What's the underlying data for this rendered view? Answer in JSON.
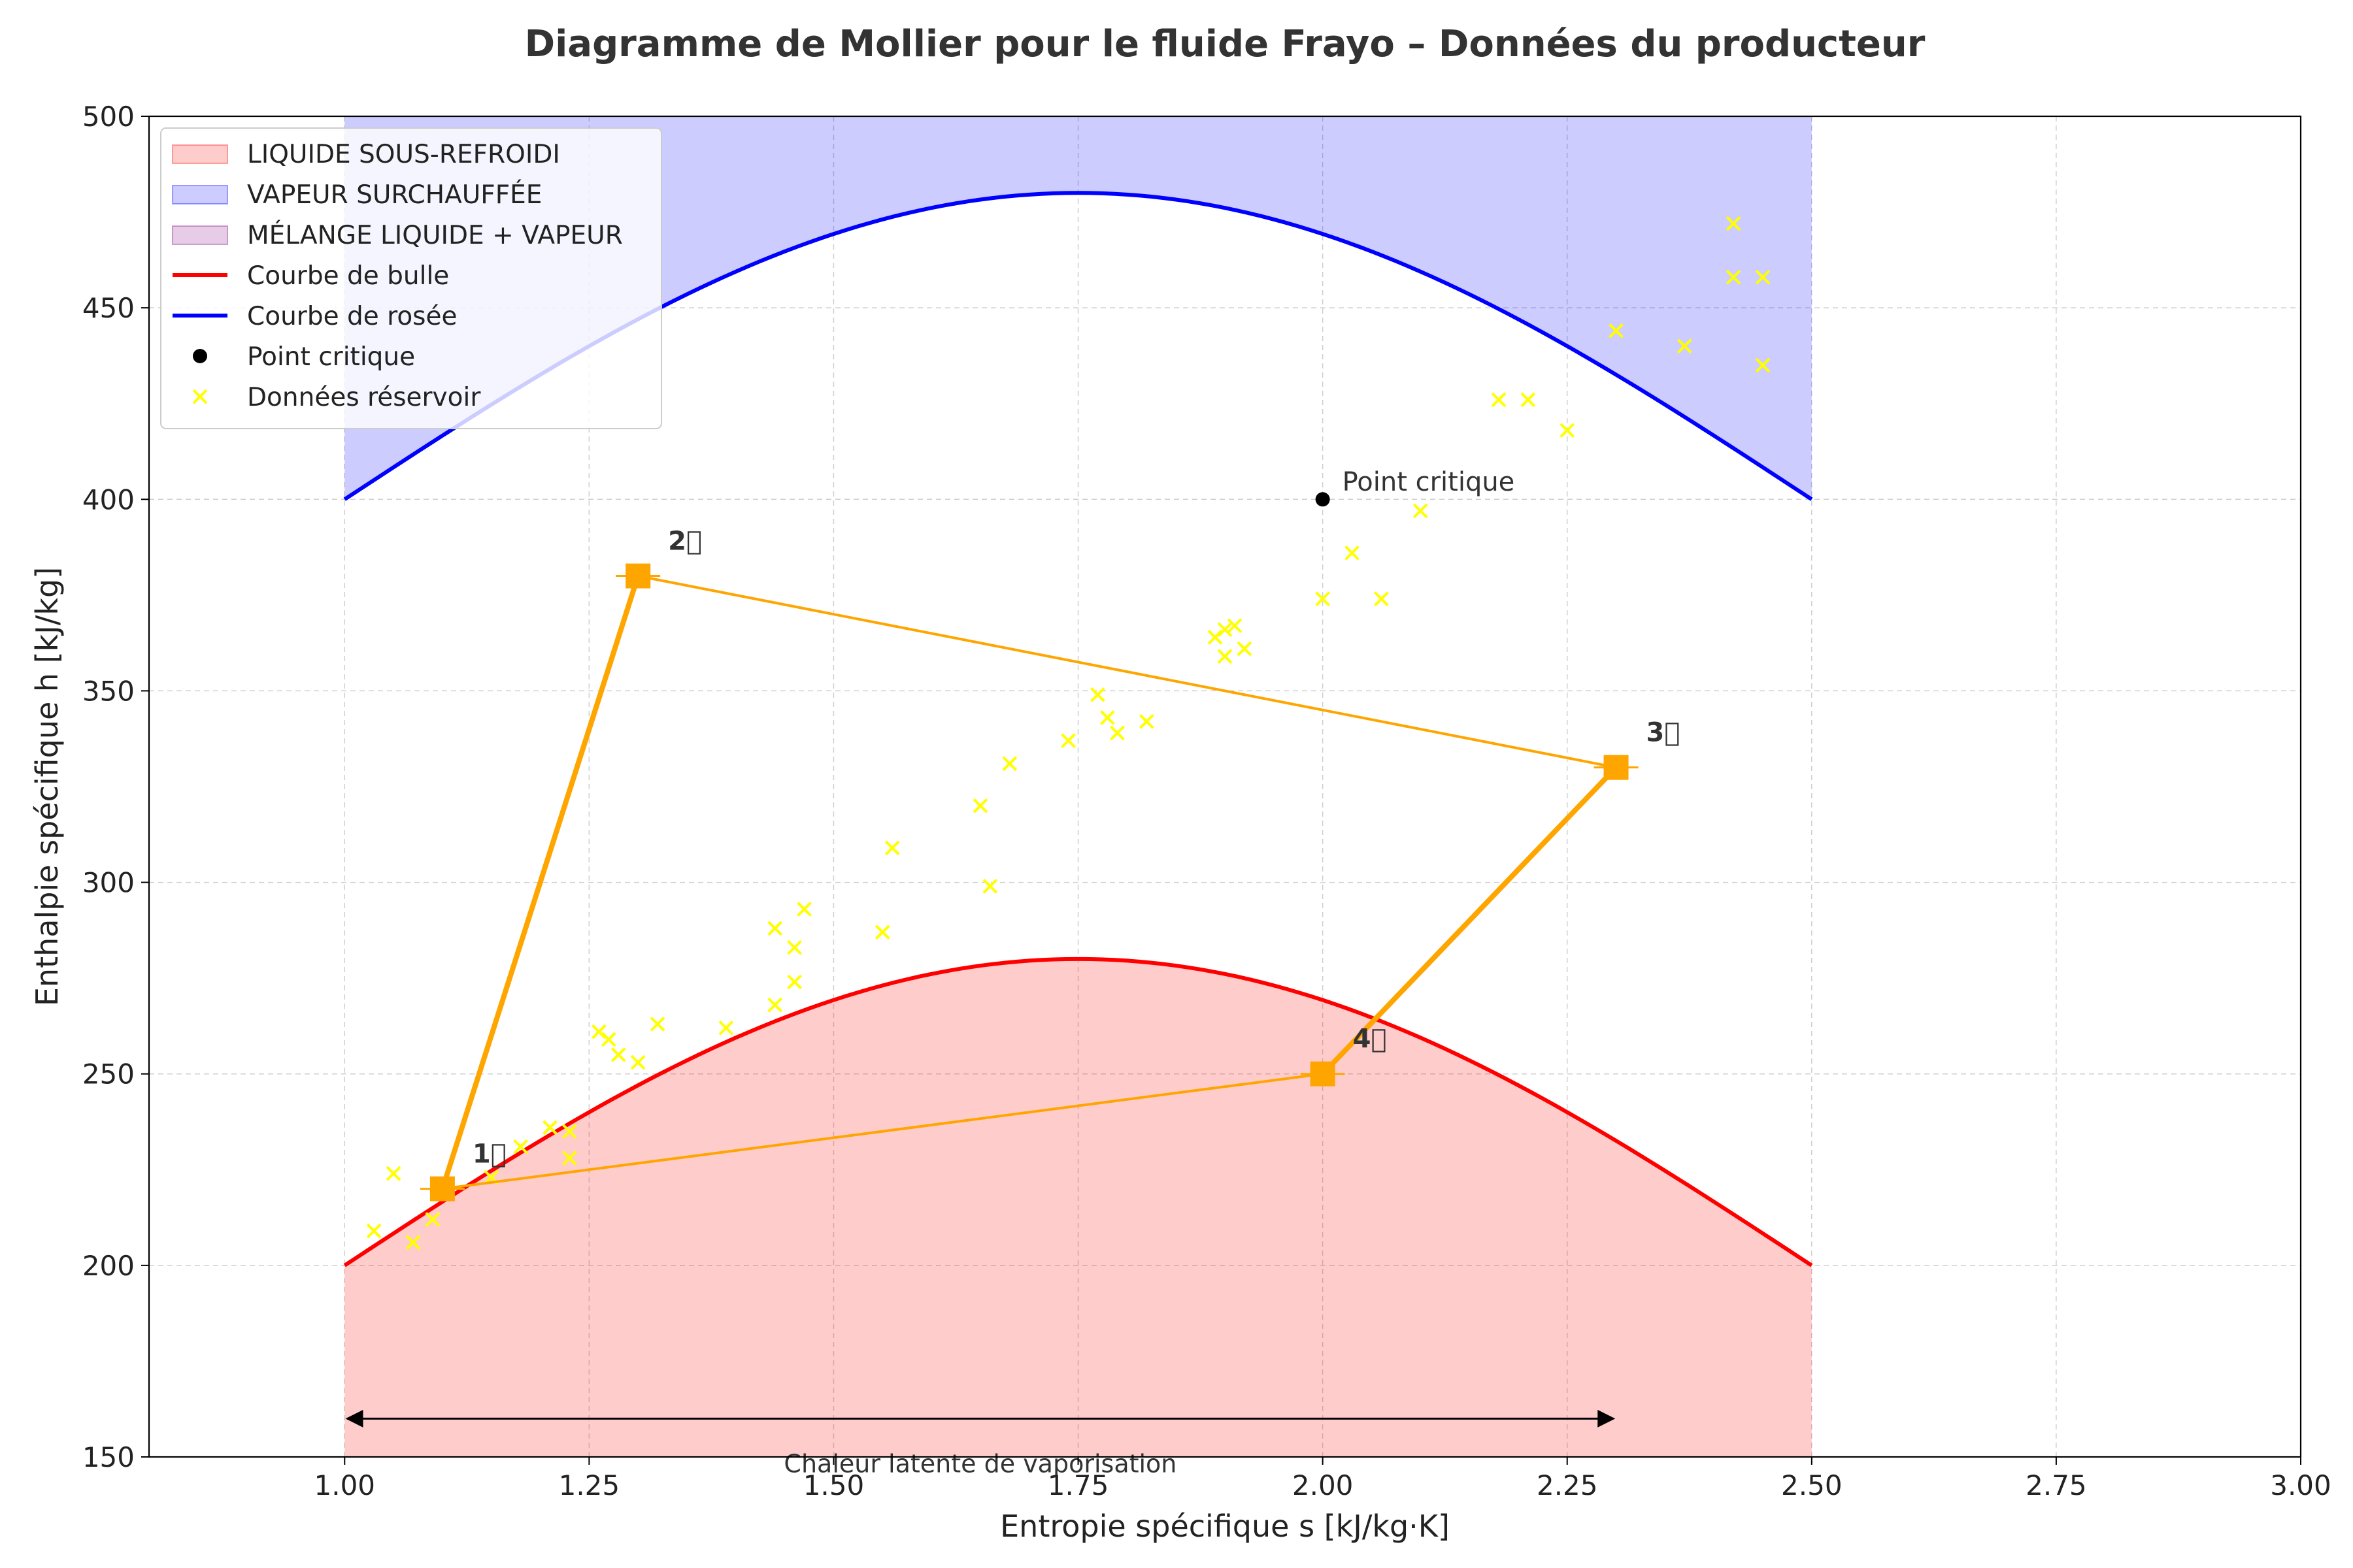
{
  "chart_data": {
    "type": "line",
    "title": "Diagramme de Mollier pour le fluide Frayo – Données du producteur",
    "xlabel": "Entropie spécifique s [kJ/kg·K]",
    "ylabel": "Enthalpie spécifique h [kJ/kg]",
    "xlim": [
      0.8,
      3.0
    ],
    "ylim": [
      150,
      500
    ],
    "xticks": [
      "1.00",
      "1.25",
      "1.50",
      "1.75",
      "2.00",
      "2.25",
      "2.50",
      "2.75",
      "3.00"
    ],
    "yticks": [
      "150",
      "200",
      "250",
      "300",
      "350",
      "400",
      "450",
      "500"
    ],
    "grid": true,
    "legend_position": "top-left",
    "regions": [
      {
        "name": "LIQUIDE SOUS-REFROIDI",
        "color": "#ff0000",
        "opacity": 0.2,
        "between": "bubble_curve and h=150",
        "x_range": [
          1.0,
          2.5
        ]
      },
      {
        "name": "VAPEUR SURCHAUFFÉE",
        "color": "#0000ff",
        "opacity": 0.2,
        "between": "dew_curve and h=500",
        "x_range": [
          1.0,
          2.5
        ]
      },
      {
        "name": "MÉLANGE LIQUIDE + VAPEUR",
        "color": "#800080",
        "opacity": 0.2,
        "between": "none visible",
        "x_range": [
          1.0,
          2.5
        ]
      }
    ],
    "series": [
      {
        "name": "Courbe de bulle",
        "color": "#ff0000",
        "kind": "line",
        "x": [
          1.0,
          1.125,
          1.25,
          1.375,
          1.5,
          1.625,
          1.75,
          1.875,
          2.0,
          2.125,
          2.25,
          2.375,
          2.5
        ],
        "y": [
          200,
          220.1,
          240.0,
          257.3,
          270.0,
          277.3,
          280.0,
          277.3,
          270.0,
          257.3,
          240.0,
          220.1,
          200
        ]
      },
      {
        "name": "Courbe de rosée",
        "color": "#0000ff",
        "kind": "line",
        "x": [
          1.0,
          1.125,
          1.25,
          1.375,
          1.5,
          1.625,
          1.75,
          1.875,
          2.0,
          2.125,
          2.25,
          2.375,
          2.5
        ],
        "y": [
          400,
          420.1,
          440.0,
          457.3,
          470.0,
          477.3,
          480.0,
          477.3,
          470.0,
          457.3,
          440.0,
          420.1,
          400
        ]
      },
      {
        "name": "Point critique",
        "color": "#000000",
        "kind": "point",
        "x": [
          2.0
        ],
        "y": [
          400
        ]
      },
      {
        "name": "Données réservoir",
        "color": "#ffff00",
        "kind": "scatter",
        "x": [
          1.03,
          1.05,
          1.07,
          1.09,
          1.15,
          1.18,
          1.21,
          1.23,
          1.23,
          1.26,
          1.27,
          1.28,
          1.3,
          1.32,
          1.39,
          1.44,
          1.44,
          1.46,
          1.46,
          1.47,
          1.55,
          1.56,
          1.65,
          1.66,
          1.68,
          1.74,
          1.77,
          1.78,
          1.79,
          1.82,
          1.89,
          1.9,
          1.9,
          1.91,
          1.92,
          2.0,
          2.03,
          2.06,
          2.1,
          2.18,
          2.21,
          2.25,
          2.3,
          2.37,
          2.42,
          2.42,
          2.45,
          2.45
        ],
        "y": [
          209,
          224,
          206,
          212,
          223,
          231,
          236,
          228,
          235,
          261,
          259,
          255,
          253,
          263,
          262,
          268,
          288,
          274,
          283,
          293,
          287,
          309,
          320,
          299,
          331,
          337,
          349,
          343,
          339,
          342,
          364,
          359,
          366,
          367,
          361,
          374,
          386,
          374,
          397,
          426,
          426,
          418,
          444,
          440,
          472,
          458,
          435,
          458
        ]
      }
    ],
    "cycle": {
      "color": "#ffa500",
      "points": [
        {
          "label": "1⃝",
          "x": 1.1,
          "y": 220
        },
        {
          "label": "2⃝",
          "x": 1.3,
          "y": 380
        },
        {
          "label": "3⃝",
          "x": 2.3,
          "y": 330
        },
        {
          "label": "4⃝",
          "x": 2.0,
          "y": 250
        }
      ]
    },
    "annotations": [
      {
        "text": "Point critique",
        "x": 2.02,
        "y": 404
      },
      {
        "text": "Chaleur latente de vaporisation",
        "x": 1.65,
        "y": 147,
        "arrow": {
          "x1": 1.0,
          "x2": 2.3,
          "y": 160
        }
      }
    ]
  }
}
